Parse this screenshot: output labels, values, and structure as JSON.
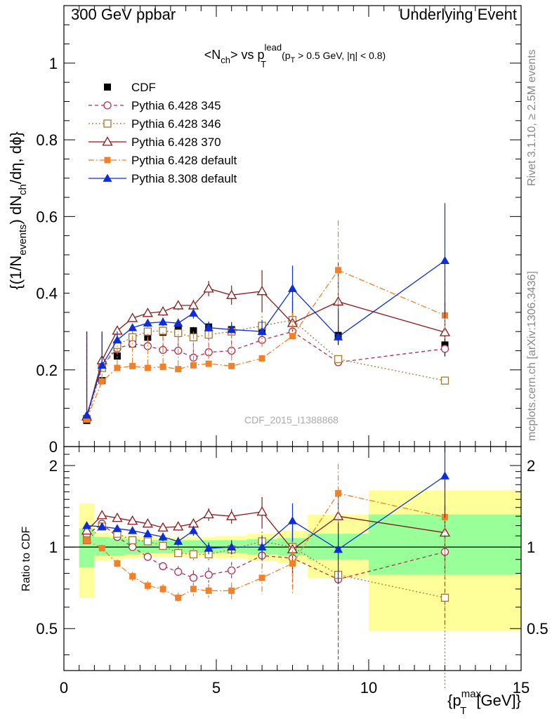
{
  "header": {
    "left": "300 GeV ppbar",
    "right": "Underlying Event"
  },
  "plot_title": {
    "main": "<N",
    "sub1": "ch",
    "mid": "> vs p",
    "sup": "lead",
    "sub2": "T",
    "cuts_a": "(p",
    "cuts_sub": "T",
    "cuts_b": " > 0.5 GeV, |η| < 0.8)"
  },
  "side_text": {
    "version": "Rivet 3.1.10, ≥ 2.5M events",
    "source": "mcplots.cern.ch [arXiv:1306.3436]"
  },
  "watermark": "CDF_2015_I1388868",
  "axes": {
    "ylabel_main": {
      "a": "{(1/N",
      "sub1": "events",
      "b": ") dN",
      "sub2": "ch",
      "c": "/dη, dϕ}"
    },
    "ylabel_ratio": "Ratio to CDF",
    "xlabel": {
      "a": "{p",
      "sup": "max",
      "sub": "T",
      "b": " [GeV]}"
    }
  },
  "chart_data": [
    {
      "type": "line",
      "panel": "main",
      "x_range": [
        0,
        15
      ],
      "ylim": [
        0,
        1.15
      ],
      "x_ticks": [
        0,
        5,
        10,
        15
      ],
      "x_tick_labels": [
        "",
        "",
        "",
        ""
      ],
      "y_ticks": [
        0,
        0.2,
        0.4,
        0.6,
        0.8,
        1
      ],
      "y_tick_labels": [
        "0",
        "0.2",
        "0.4",
        "0.6",
        "0.8",
        "1"
      ],
      "data": {
        "name": "CDF",
        "x": [
          0.75,
          1.25,
          1.75,
          2.25,
          2.75,
          3.25,
          3.75,
          4.25,
          4.75,
          5.5,
          6.5,
          7.5,
          9.0,
          12.5
        ],
        "y": [
          0.068,
          0.172,
          0.236,
          0.268,
          0.285,
          0.298,
          0.31,
          0.302,
          0.312,
          0.305,
          0.3,
          0.33,
          0.29,
          0.265
        ],
        "yerr": [
          0.004,
          0.005,
          0.006,
          0.006,
          0.007,
          0.008,
          0.009,
          0.01,
          0.012,
          0.014,
          0.016,
          0.022,
          0.025,
          0.03
        ],
        "color": "#000000"
      },
      "series": [
        {
          "name": "Pythia 6.428 345",
          "color": "#b03050",
          "dash": "5,4",
          "marker": "circle-open",
          "x": [
            0.75,
            1.25,
            1.75,
            2.25,
            2.75,
            3.25,
            3.75,
            4.25,
            4.75,
            5.5,
            6.5,
            7.5,
            9.0,
            12.5
          ],
          "y": [
            0.075,
            0.21,
            0.256,
            0.268,
            0.262,
            0.252,
            0.25,
            0.232,
            0.246,
            0.25,
            0.278,
            0.3,
            0.22,
            0.255
          ],
          "yerr": [
            0.004,
            0.006,
            0.007,
            0.008,
            0.008,
            0.009,
            0.01,
            0.012,
            0.014,
            0.016,
            0.025,
            0.05,
            0.09,
            0.12
          ]
        },
        {
          "name": "Pythia 6.428 346",
          "color": "#a07830",
          "dash": "2,3",
          "marker": "square-open",
          "x": [
            0.75,
            1.25,
            1.75,
            2.25,
            2.75,
            3.25,
            3.75,
            4.25,
            4.75,
            5.5,
            6.5,
            7.5,
            9.0,
            12.5
          ],
          "y": [
            0.072,
            0.205,
            0.265,
            0.285,
            0.3,
            0.302,
            0.296,
            0.285,
            0.292,
            0.3,
            0.315,
            0.33,
            0.228,
            0.172
          ],
          "yerr": [
            0.004,
            0.006,
            0.007,
            0.008,
            0.008,
            0.009,
            0.01,
            0.012,
            0.014,
            0.016,
            0.025,
            0.06,
            0.1,
            0.11
          ]
        },
        {
          "name": "Pythia 6.428 370",
          "color": "#8b1a1a",
          "dash": "",
          "marker": "triangle-open",
          "x": [
            0.75,
            1.25,
            1.75,
            2.25,
            2.75,
            3.25,
            3.75,
            4.25,
            4.75,
            5.5,
            6.5,
            7.5,
            9.0,
            12.5
          ],
          "y": [
            0.078,
            0.225,
            0.302,
            0.335,
            0.348,
            0.352,
            0.368,
            0.368,
            0.412,
            0.395,
            0.405,
            0.322,
            0.378,
            0.298
          ],
          "yerr": [
            0.004,
            0.007,
            0.008,
            0.009,
            0.01,
            0.011,
            0.012,
            0.015,
            0.02,
            0.025,
            0.055,
            0.06,
            0.1,
            0.08
          ]
        },
        {
          "name": "Pythia 6.428 default",
          "color": "#f0812a",
          "dash": "8,3,2,3",
          "marker": "square",
          "x": [
            0.75,
            1.25,
            1.75,
            2.25,
            2.75,
            3.25,
            3.75,
            4.25,
            4.75,
            5.5,
            6.5,
            7.5,
            9.0,
            12.5
          ],
          "y": [
            0.072,
            0.17,
            0.205,
            0.21,
            0.205,
            0.208,
            0.202,
            0.212,
            0.216,
            0.21,
            0.23,
            0.288,
            0.46,
            0.342
          ],
          "yerr": [
            0.004,
            0.005,
            0.006,
            0.007,
            0.007,
            0.008,
            0.009,
            0.01,
            0.012,
            0.015,
            0.03,
            0.06,
            0.13,
            0.12
          ]
        },
        {
          "name": "Pythia 8.308 default",
          "color": "#0d2dd8",
          "dash": "",
          "marker": "triangle",
          "x": [
            0.75,
            1.25,
            1.75,
            2.25,
            2.75,
            3.25,
            3.75,
            4.25,
            4.75,
            5.5,
            6.5,
            7.5,
            9.0,
            12.5
          ],
          "y": [
            0.082,
            0.212,
            0.278,
            0.31,
            0.322,
            0.325,
            0.322,
            0.348,
            0.31,
            0.305,
            0.3,
            0.412,
            0.286,
            0.485
          ],
          "yerr": [
            0.004,
            0.006,
            0.008,
            0.009,
            0.01,
            0.011,
            0.012,
            0.014,
            0.016,
            0.02,
            0.03,
            0.06,
            0.07,
            0.15
          ]
        }
      ],
      "legend": [
        "CDF",
        "Pythia 6.428 345",
        "Pythia 6.428 346",
        "Pythia 6.428 370",
        "Pythia 6.428 default",
        "Pythia 8.308 default"
      ],
      "legend_position": "top-left"
    },
    {
      "type": "line",
      "panel": "ratio",
      "x_range": [
        0,
        15
      ],
      "ylim": [
        0.35,
        2.35
      ],
      "y_scale": "log",
      "x_ticks": [
        0,
        5,
        10,
        15
      ],
      "x_tick_labels": [
        "0",
        "5",
        "10",
        "15"
      ],
      "y_ticks": [
        0.5,
        1,
        2
      ],
      "y_tick_labels": [
        "0.5",
        "1",
        "2"
      ],
      "reference_line": 1,
      "bands": {
        "bins": [
          [
            0.5,
            1.0
          ],
          [
            1.0,
            1.5
          ],
          [
            1.5,
            2.0
          ],
          [
            2.0,
            2.5
          ],
          [
            2.5,
            3.0
          ],
          [
            3.0,
            3.5
          ],
          [
            3.5,
            4.0
          ],
          [
            4.0,
            4.5
          ],
          [
            4.5,
            5.0
          ],
          [
            5.0,
            6.0
          ],
          [
            6.0,
            7.0
          ],
          [
            7.0,
            8.0
          ],
          [
            8.0,
            10.0
          ],
          [
            10.0,
            15.0
          ]
        ],
        "inner_low": [
          0.84,
          0.93,
          0.93,
          0.94,
          0.95,
          0.95,
          0.95,
          0.95,
          0.95,
          0.95,
          0.94,
          0.93,
          0.9,
          0.79
        ],
        "inner_high": [
          1.17,
          1.09,
          1.08,
          1.07,
          1.06,
          1.06,
          1.06,
          1.06,
          1.06,
          1.06,
          1.07,
          1.08,
          1.12,
          1.32
        ],
        "outer_low": [
          0.65,
          0.89,
          0.9,
          0.91,
          0.92,
          0.92,
          0.92,
          0.92,
          0.92,
          0.91,
          0.89,
          0.87,
          0.77,
          0.49
        ],
        "outer_high": [
          1.45,
          1.13,
          1.11,
          1.1,
          1.09,
          1.09,
          1.09,
          1.09,
          1.09,
          1.1,
          1.12,
          1.15,
          1.32,
          1.62
        ],
        "inner_color": "#99ff99",
        "outer_color": "#ffff99"
      },
      "series": [
        {
          "name": "Pythia 6.428 345",
          "color": "#b03050",
          "dash": "5,4",
          "marker": "circle-open",
          "x": [
            0.75,
            1.25,
            1.75,
            2.25,
            2.75,
            3.25,
            3.75,
            4.25,
            4.75,
            5.5,
            6.5,
            7.5,
            9.0,
            12.5
          ],
          "y": [
            1.11,
            1.22,
            1.09,
            1.0,
            0.92,
            0.85,
            0.81,
            0.77,
            0.79,
            0.82,
            0.93,
            0.91,
            0.76,
            0.96
          ],
          "yerr": [
            0.03,
            0.03,
            0.03,
            0.03,
            0.03,
            0.03,
            0.04,
            0.05,
            0.05,
            0.06,
            0.09,
            0.2,
            0.4,
            0.45
          ]
        },
        {
          "name": "Pythia 6.428 346",
          "color": "#a07830",
          "dash": "2,3",
          "marker": "square-open",
          "x": [
            0.75,
            1.25,
            1.75,
            2.25,
            2.75,
            3.25,
            3.75,
            4.25,
            4.75,
            5.5,
            6.5,
            7.5,
            9.0,
            12.5
          ],
          "y": [
            1.06,
            1.19,
            1.12,
            1.06,
            1.05,
            1.01,
            0.95,
            0.94,
            0.94,
            0.98,
            1.05,
            1.0,
            0.79,
            0.65
          ],
          "yerr": [
            0.03,
            0.03,
            0.03,
            0.03,
            0.03,
            0.03,
            0.04,
            0.05,
            0.05,
            0.06,
            0.09,
            0.2,
            0.4,
            0.45
          ]
        },
        {
          "name": "Pythia 6.428 370",
          "color": "#8b1a1a",
          "dash": "",
          "marker": "triangle-open",
          "x": [
            0.75,
            1.25,
            1.75,
            2.25,
            2.75,
            3.25,
            3.75,
            4.25,
            4.75,
            5.5,
            6.5,
            7.5,
            9.0,
            12.5
          ],
          "y": [
            1.15,
            1.31,
            1.28,
            1.25,
            1.22,
            1.18,
            1.19,
            1.22,
            1.32,
            1.3,
            1.35,
            0.98,
            1.3,
            1.13
          ],
          "yerr": [
            0.03,
            0.03,
            0.03,
            0.03,
            0.03,
            0.04,
            0.04,
            0.05,
            0.07,
            0.08,
            0.18,
            0.2,
            0.35,
            0.3
          ]
        },
        {
          "name": "Pythia 6.428 default",
          "color": "#f0812a",
          "dash": "8,3,2,3",
          "marker": "square",
          "x": [
            0.75,
            1.25,
            1.75,
            2.25,
            2.75,
            3.25,
            3.75,
            4.25,
            4.75,
            5.5,
            6.5,
            7.5,
            9.0,
            12.5
          ],
          "y": [
            1.06,
            0.99,
            0.87,
            0.78,
            0.72,
            0.7,
            0.65,
            0.7,
            0.69,
            0.69,
            0.77,
            0.87,
            1.58,
            1.29
          ],
          "yerr": [
            0.03,
            0.03,
            0.03,
            0.03,
            0.03,
            0.03,
            0.03,
            0.04,
            0.04,
            0.05,
            0.1,
            0.2,
            0.45,
            0.45
          ]
        },
        {
          "name": "Pythia 8.308 default",
          "color": "#0d2dd8",
          "dash": "",
          "marker": "triangle",
          "x": [
            0.75,
            1.25,
            1.75,
            2.25,
            2.75,
            3.25,
            3.75,
            4.25,
            4.75,
            5.5,
            6.5,
            7.5,
            9.0,
            12.5
          ],
          "y": [
            1.2,
            1.19,
            1.17,
            1.15,
            1.12,
            1.09,
            1.05,
            1.15,
            0.99,
            1.0,
            1.0,
            1.25,
            0.98,
            1.83
          ],
          "yerr": [
            0.03,
            0.03,
            0.03,
            0.03,
            0.03,
            0.04,
            0.04,
            0.05,
            0.05,
            0.06,
            0.1,
            0.2,
            0.25,
            0.55
          ]
        }
      ]
    }
  ]
}
